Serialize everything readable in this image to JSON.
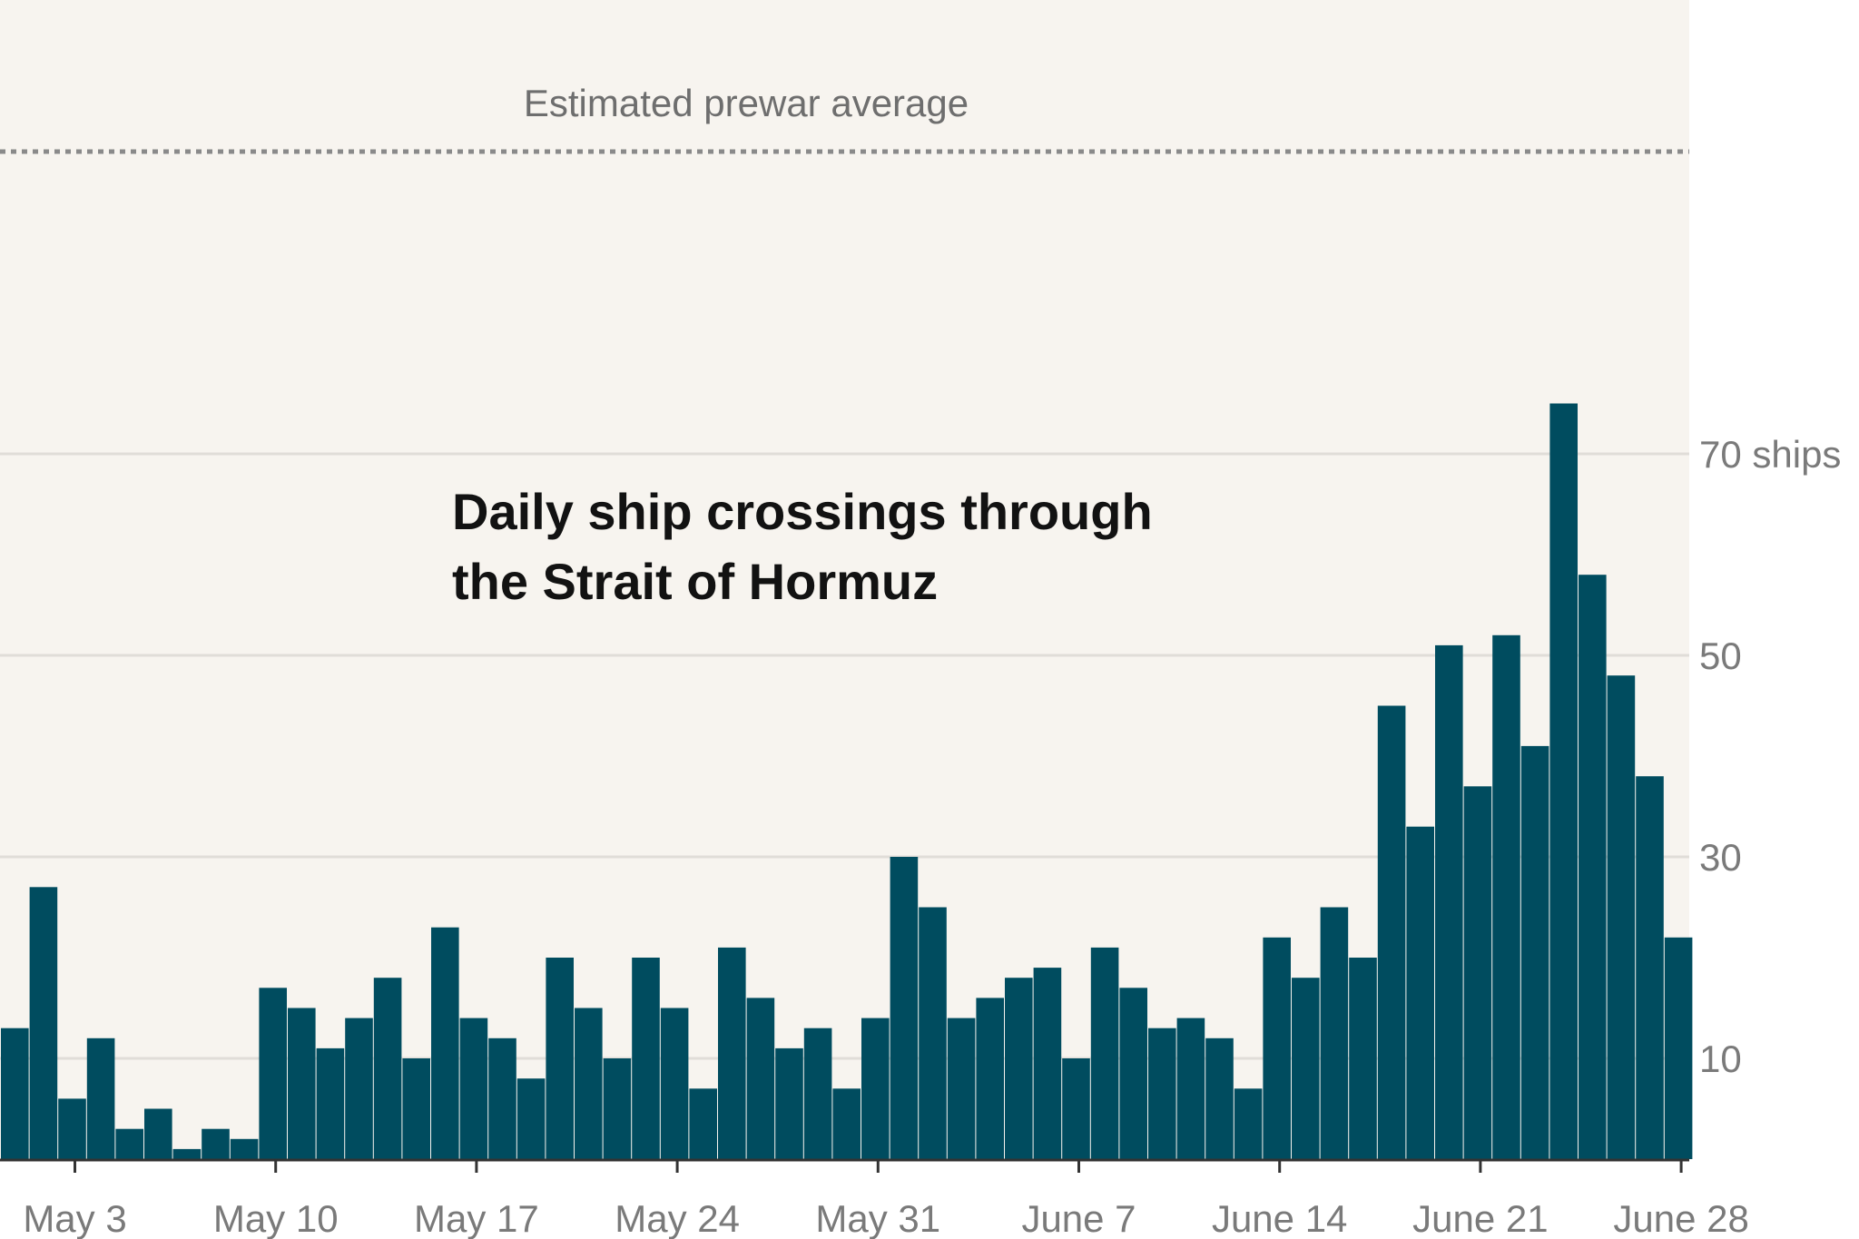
{
  "chart_data": {
    "type": "bar",
    "title_lines": [
      "Daily ship crossings through",
      "the Strait of Hormuz"
    ],
    "y_unit_label": "70 ships",
    "ylim": [
      0,
      115
    ],
    "y_ticks": [
      10,
      30,
      50,
      70
    ],
    "y_tick_labels": [
      "10",
      "30",
      "50",
      "70 ships"
    ],
    "grid": true,
    "reference_line": {
      "label": "Estimated prewar average",
      "value": 100
    },
    "x_ticks": [
      {
        "index": 2,
        "label": "May 3"
      },
      {
        "index": 9,
        "label": "May 10"
      },
      {
        "index": 16,
        "label": "May 17"
      },
      {
        "index": 23,
        "label": "May 24"
      },
      {
        "index": 30,
        "label": "May 31"
      },
      {
        "index": 37,
        "label": "June 7"
      },
      {
        "index": 44,
        "label": "June 14"
      },
      {
        "index": 51,
        "label": "June 21"
      },
      {
        "index": 58,
        "label": "June 28"
      }
    ],
    "values": [
      13,
      27,
      6,
      12,
      3,
      5,
      1,
      3,
      2,
      17,
      15,
      11,
      14,
      18,
      10,
      23,
      14,
      12,
      8,
      20,
      15,
      10,
      20,
      15,
      7,
      21,
      16,
      11,
      13,
      7,
      14,
      30,
      25,
      14,
      16,
      18,
      19,
      10,
      21,
      17,
      13,
      14,
      12,
      7,
      22,
      18,
      25,
      20,
      45,
      33,
      51,
      37,
      52,
      41,
      75,
      58,
      48,
      38,
      22
    ],
    "colors": {
      "bar": "#004c5f",
      "plot_bg": "#f7f4ef",
      "grid": "#e0ddd8",
      "reference": "#8a8a8a"
    }
  }
}
